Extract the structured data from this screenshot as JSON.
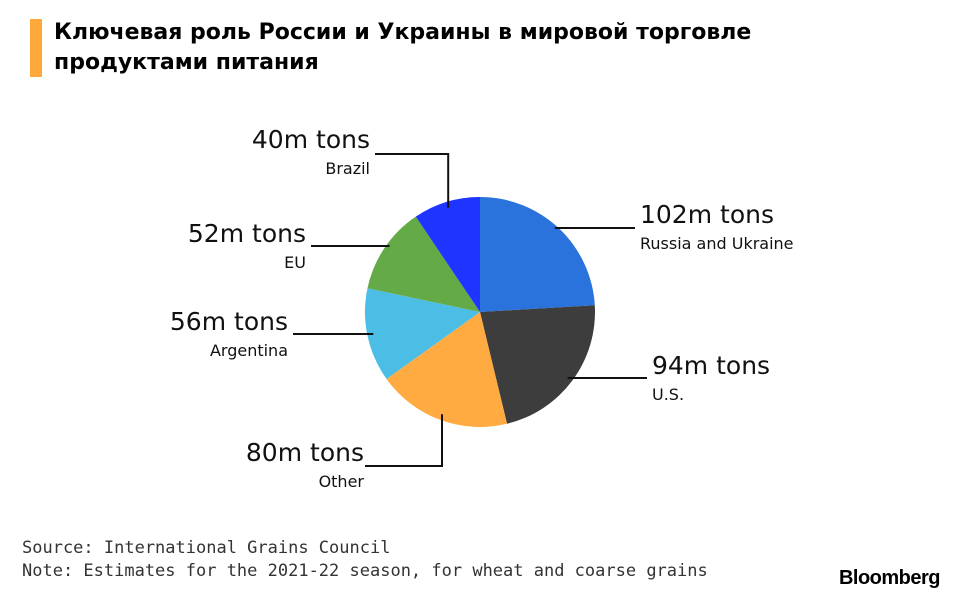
{
  "title": "Ключевая роль России и Украины в мировой торговле продуктами питания",
  "chart_data": {
    "type": "pie",
    "slices": [
      {
        "value": 102,
        "value_label": "102m tons",
        "name": "Russia and Ukraine",
        "color": "#2a72dc"
      },
      {
        "value": 94,
        "value_label": "94m tons",
        "name": "U.S.",
        "color": "#3d3d3d"
      },
      {
        "value": 80,
        "value_label": "80m tons",
        "name": "Other",
        "color": "#ffab41"
      },
      {
        "value": 56,
        "value_label": "56m tons",
        "name": "Argentina",
        "color": "#4cbde5"
      },
      {
        "value": 52,
        "value_label": "52m tons",
        "name": "EU",
        "color": "#64ab48"
      },
      {
        "value": 40,
        "value_label": "40m tons",
        "name": "Brazil",
        "color": "#1d35ff"
      }
    ],
    "start": "12 o'clock",
    "direction": "clockwise"
  },
  "footer": {
    "source": "Source: International Grains Council",
    "note": "Note: Estimates for the 2021-22 season, for wheat and coarse grains"
  },
  "brand": "Bloomberg"
}
